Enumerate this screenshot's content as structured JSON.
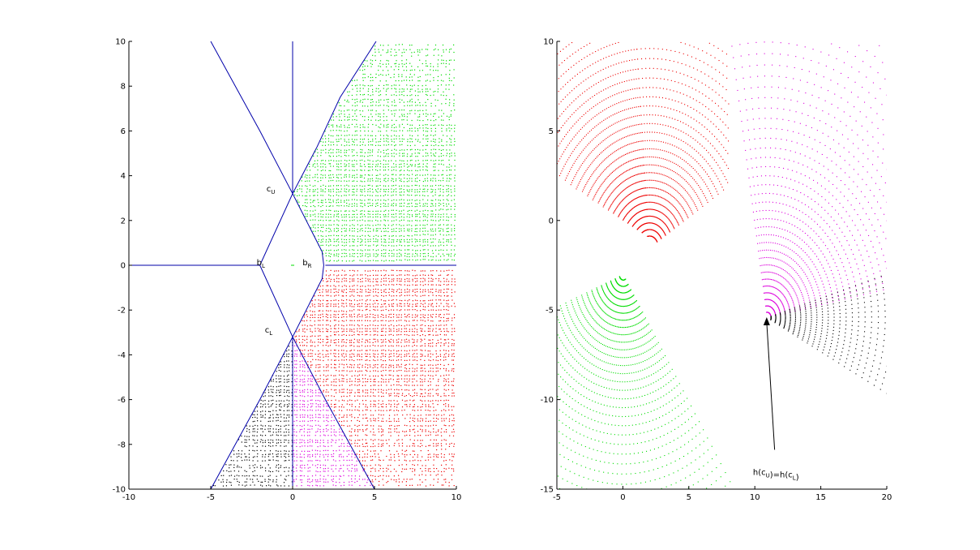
{
  "chart_data": [
    {
      "type": "scatter",
      "title": "",
      "xlabel": "",
      "ylabel": "",
      "xlim": [
        -10,
        10
      ],
      "ylim": [
        -10,
        10
      ],
      "xticks": [
        -10,
        -5,
        0,
        5,
        10
      ],
      "yticks": [
        -10,
        -8,
        -6,
        -4,
        -2,
        0,
        2,
        4,
        6,
        8,
        10
      ],
      "grid": false,
      "colors": {
        "boundary": "#0000aa",
        "green": "#00dd00",
        "red": "#ee0000",
        "magenta": "#dd00dd",
        "black": "#000000"
      },
      "boundary_lines": [
        {
          "points": [
            [
              0,
              10
            ],
            [
              0,
              3.2
            ]
          ]
        },
        {
          "points": [
            [
              -5,
              10
            ],
            [
              -2,
              6
            ],
            [
              0,
              3.2
            ]
          ]
        },
        {
          "points": [
            [
              0,
              3.2
            ],
            [
              1.5,
              5.3
            ],
            [
              2.9,
              7.5
            ],
            [
              5.1,
              10
            ]
          ]
        },
        {
          "points": [
            [
              0,
              3.2
            ],
            [
              -2,
              0
            ],
            [
              0,
              -3.2
            ]
          ]
        },
        {
          "points": [
            [
              0,
              3.2
            ],
            [
              1.8,
              0.6
            ],
            [
              1.9,
              0
            ],
            [
              1.8,
              -0.6
            ],
            [
              0,
              -3.2
            ]
          ]
        },
        {
          "points": [
            [
              -10,
              0
            ],
            [
              -2,
              0
            ]
          ]
        },
        {
          "points": [
            [
              2,
              0
            ],
            [
              10,
              0
            ]
          ]
        },
        {
          "points": [
            [
              0,
              -3.2
            ],
            [
              0,
              -10
            ]
          ]
        },
        {
          "points": [
            [
              0,
              -3.2
            ],
            [
              -2,
              -6
            ],
            [
              -5,
              -10
            ]
          ]
        },
        {
          "points": [
            [
              0,
              -3.2
            ],
            [
              2,
              -6
            ],
            [
              5,
              -10
            ]
          ]
        }
      ],
      "regions": [
        {
          "color": "green",
          "polygon": [
            [
              2,
              0.2
            ],
            [
              0,
              3.2
            ],
            [
              1.5,
              5.3
            ],
            [
              2.9,
              7.5
            ],
            [
              5.1,
              10
            ],
            [
              10,
              10
            ],
            [
              10,
              0.2
            ]
          ],
          "focus": [
            5,
            1
          ]
        },
        {
          "color": "red",
          "polygon": [
            [
              2,
              -0.2
            ],
            [
              10,
              -0.2
            ],
            [
              10,
              -10
            ],
            [
              5,
              -10
            ],
            [
              0,
              -3.2
            ]
          ],
          "focus": [
            5,
            -1.5
          ]
        },
        {
          "color": "magenta",
          "polygon": [
            [
              0,
              -3.2
            ],
            [
              0,
              -10
            ],
            [
              5,
              -10
            ],
            [
              2,
              -6
            ]
          ],
          "focus": [
            0,
            -3.2
          ]
        },
        {
          "color": "black",
          "polygon": [
            [
              0,
              -3.2
            ],
            [
              -5,
              -10
            ],
            [
              0,
              -10
            ]
          ],
          "focus": [
            0,
            -3.2
          ]
        }
      ],
      "annotations": [
        {
          "base": "c",
          "sub": "U",
          "x": -1.0,
          "y": 3.3
        },
        {
          "base": "b",
          "sub": "L",
          "x": -1.6,
          "y": 0.0
        },
        {
          "base": "b",
          "sub": "R",
          "x": 1.2,
          "y": 0.0
        },
        {
          "base": "c",
          "sub": "L",
          "x": -1.1,
          "y": -3.0
        }
      ],
      "small_mark": {
        "color": "green",
        "x": 0,
        "y": 0
      }
    },
    {
      "type": "scatter",
      "title": "",
      "xlabel": "",
      "ylabel": "",
      "xlim": [
        -5,
        20
      ],
      "ylim": [
        -15,
        10
      ],
      "xticks": [
        -5,
        0,
        5,
        10,
        15,
        20
      ],
      "yticks": [
        -15,
        -10,
        -5,
        0,
        5,
        10
      ],
      "grid": false,
      "colors": {
        "green": "#00dd00",
        "red": "#ee0000",
        "magenta": "#dd00dd",
        "black": "#000000"
      },
      "rays": [
        {
          "color": "green",
          "origin": [
            0,
            -3
          ],
          "angle_deg": [
            200,
            305
          ],
          "count": 60,
          "r_max": 20
        },
        {
          "color": "red",
          "origin": [
            2,
            -1.5
          ],
          "angle_deg": [
            95,
            155
          ],
          "count": 55,
          "r_max": 14
        },
        {
          "color": "red",
          "origin": [
            2,
            -1.5
          ],
          "angle_deg": [
            30,
            95
          ],
          "count": 40,
          "r_max": 14
        },
        {
          "color": "magenta",
          "origin": [
            10.9,
            -5.4
          ],
          "angle_deg": [
            10,
            100
          ],
          "count": 40,
          "r_max": 18
        },
        {
          "color": "black",
          "origin": [
            10.9,
            -5.4
          ],
          "angle_deg": [
            -25,
            15
          ],
          "count": 20,
          "r_max": 16
        }
      ],
      "separator": {
        "from": [
          -5,
          2.4
        ],
        "to": [
          10.9,
          -5.4
        ]
      },
      "annotation": {
        "text": "h(c_U)=h(c_L)",
        "parts": [
          [
            "h(c",
            "U"
          ],
          [
            ")=h(c",
            "L"
          ],
          [
            ")",
            ""
          ]
        ],
        "x": 11.6,
        "y": -14.2,
        "arrow_to": [
          10.9,
          -5.4
        ],
        "arrow_from": [
          11.5,
          -12.8
        ]
      }
    }
  ]
}
